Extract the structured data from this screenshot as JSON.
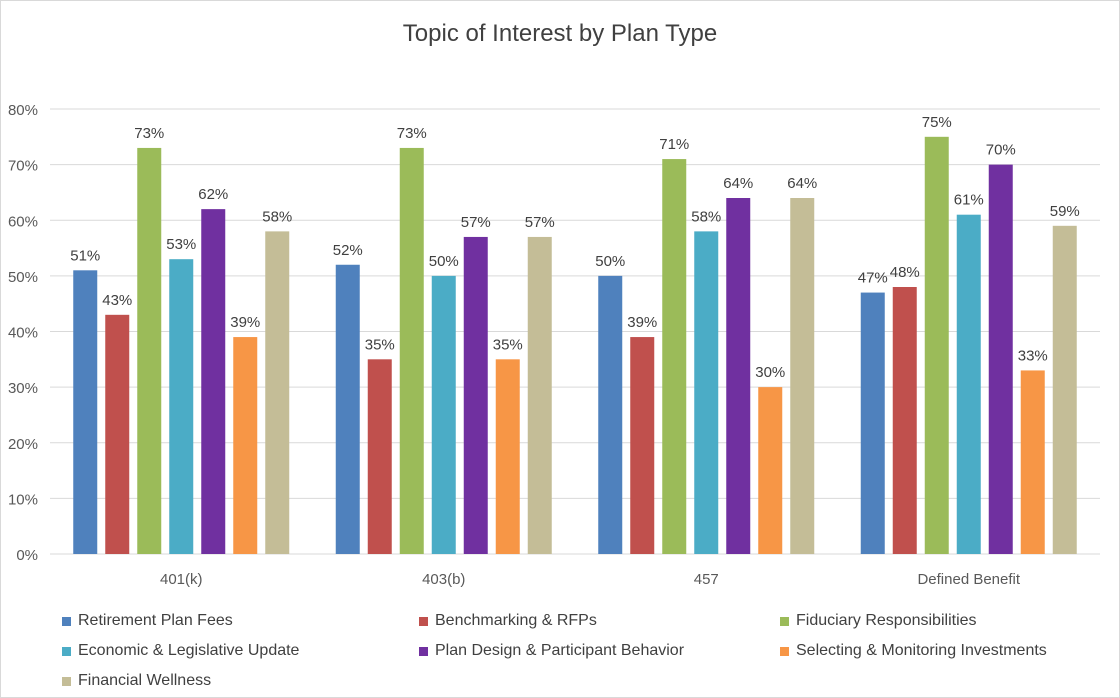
{
  "chart_data": {
    "type": "bar",
    "title": "Topic of Interest by Plan Type",
    "xlabel": "",
    "ylabel": "",
    "ylim": [
      0,
      80
    ],
    "y_ticks": [
      "0%",
      "10%",
      "20%",
      "30%",
      "40%",
      "50%",
      "60%",
      "70%",
      "80%"
    ],
    "grid": "horizontal",
    "legend_position": "bottom",
    "categories": [
      "401(k)",
      "403(b)",
      "457",
      "Defined Benefit"
    ],
    "series": [
      {
        "name": "Retirement Plan Fees",
        "color": "#4f81bd",
        "values": [
          51,
          52,
          50,
          47
        ],
        "labels": [
          "51%",
          "52%",
          "50%",
          "47%"
        ]
      },
      {
        "name": "Benchmarking & RFPs",
        "color": "#c0504d",
        "values": [
          43,
          35,
          39,
          48
        ],
        "labels": [
          "43%",
          "35%",
          "39%",
          "48%"
        ]
      },
      {
        "name": "Fiduciary Responsibilities",
        "color": "#9bbb59",
        "values": [
          73,
          73,
          71,
          75
        ],
        "labels": [
          "73%",
          "73%",
          "71%",
          "75%"
        ]
      },
      {
        "name": "Economic & Legislative Update",
        "color": "#4bacc6",
        "values": [
          53,
          50,
          58,
          61
        ],
        "labels": [
          "53%",
          "50%",
          "58%",
          "61%"
        ]
      },
      {
        "name": "Plan Design & Participant Behavior",
        "color": "#7030a0",
        "values": [
          62,
          57,
          64,
          70
        ],
        "labels": [
          "62%",
          "57%",
          "64%",
          "70%"
        ]
      },
      {
        "name": "Selecting & Monitoring Investments",
        "color": "#f79646",
        "values": [
          39,
          35,
          30,
          33
        ],
        "labels": [
          "39%",
          "35%",
          "30%",
          "33%"
        ]
      },
      {
        "name": "Financial Wellness",
        "color": "#c4bd97",
        "values": [
          58,
          57,
          64,
          59
        ],
        "labels": [
          "58%",
          "57%",
          "64%",
          "59%"
        ]
      }
    ]
  }
}
